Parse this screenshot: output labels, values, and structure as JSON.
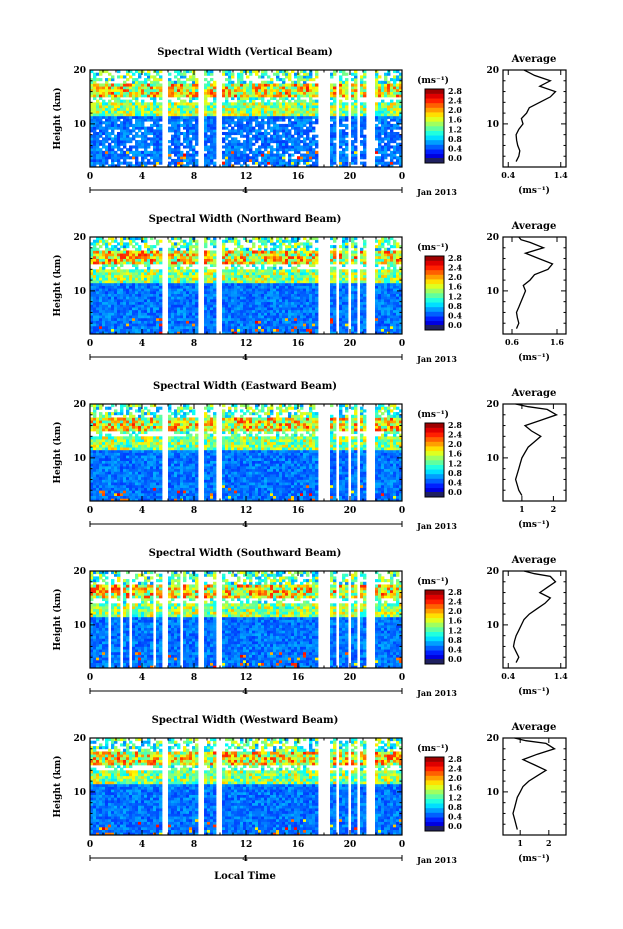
{
  "date_label": "Jan 2013",
  "xlabel_main": "Local Time",
  "ylabel": "Height (km)",
  "day_label": "4",
  "colorbar_unit": "(ms⁻¹)",
  "colorbar_ticks": [
    "0.0",
    "0.4",
    "0.8",
    "1.2",
    "1.6",
    "2.0",
    "2.4",
    "2.8"
  ],
  "avg_title": "Average",
  "avg_xlabel": "(ms⁻¹)",
  "chart_data": [
    {
      "type": "heatmap",
      "title": "Spectral Width (Vertical Beam)",
      "xticks": [
        "0",
        "4",
        "8",
        "12",
        "16",
        "20",
        "0"
      ],
      "yticks": [
        "10",
        "20"
      ],
      "xlim": [
        0,
        24
      ],
      "ylim": [
        2,
        20
      ],
      "clim": [
        0,
        3.0
      ]
    },
    {
      "type": "line",
      "title": "Average",
      "xticks": [
        "0.4",
        "1.4"
      ],
      "xlim": [
        0.3,
        1.5
      ],
      "ylim": [
        2,
        20
      ],
      "x": [
        0.55,
        0.6,
        0.62,
        0.58,
        0.56,
        0.55,
        0.6,
        0.68,
        0.65,
        0.75,
        0.8,
        1.0,
        1.2,
        1.3,
        1.0,
        1.2,
        0.9,
        0.8,
        0.7
      ],
      "y": [
        3,
        4,
        5,
        6,
        7,
        8,
        9,
        10,
        11,
        12,
        13,
        14,
        15,
        16,
        17,
        18,
        19,
        19.5,
        20
      ]
    },
    {
      "type": "heatmap",
      "title": "Spectral Width (Northward Beam)",
      "xticks": [
        "0",
        "4",
        "8",
        "12",
        "16",
        "20",
        "0"
      ],
      "yticks": [
        "10",
        "20"
      ],
      "xlim": [
        0,
        24
      ],
      "ylim": [
        2,
        20
      ],
      "clim": [
        0,
        3.0
      ]
    },
    {
      "type": "line",
      "title": "Average",
      "xticks": [
        "0.6",
        "1.6"
      ],
      "xlim": [
        0.4,
        1.8
      ],
      "ylim": [
        2,
        20
      ],
      "x": [
        0.7,
        0.75,
        0.72,
        0.7,
        0.75,
        0.8,
        0.85,
        0.9,
        0.85,
        1.0,
        1.1,
        1.4,
        1.5,
        1.2,
        0.9,
        1.3,
        1.0,
        0.8,
        0.75
      ],
      "y": [
        3,
        4,
        5,
        6,
        7,
        8,
        9,
        10,
        11,
        12,
        13,
        14,
        15,
        16,
        17,
        18,
        19,
        19.5,
        20
      ]
    },
    {
      "type": "heatmap",
      "title": "Spectral Width (Eastward Beam)",
      "xticks": [
        "0",
        "4",
        "8",
        "12",
        "16",
        "20",
        "0"
      ],
      "yticks": [
        "10",
        "20"
      ],
      "xlim": [
        0,
        24
      ],
      "ylim": [
        2,
        20
      ],
      "clim": [
        0,
        3.0
      ]
    },
    {
      "type": "line",
      "title": "Average",
      "xticks": [
        "1",
        "2"
      ],
      "xlim": [
        0.4,
        2.4
      ],
      "ylim": [
        2,
        20
      ],
      "x": [
        1.0,
        0.9,
        0.85,
        0.8,
        0.85,
        0.9,
        0.95,
        1.0,
        1.1,
        1.2,
        1.4,
        1.6,
        1.3,
        1.1,
        1.6,
        2.1,
        1.8,
        1.2,
        0.8
      ],
      "y": [
        3,
        4,
        5,
        6,
        7,
        8,
        9,
        10,
        11,
        12,
        13,
        14,
        15,
        16,
        17,
        18,
        19,
        19.5,
        20
      ]
    },
    {
      "type": "heatmap",
      "title": "Spectral Width (Southward Beam)",
      "xticks": [
        "0",
        "4",
        "8",
        "12",
        "16",
        "20",
        "0"
      ],
      "yticks": [
        "10",
        "20"
      ],
      "xlim": [
        0,
        24
      ],
      "ylim": [
        2,
        20
      ],
      "clim": [
        0,
        3.0
      ]
    },
    {
      "type": "line",
      "title": "Average",
      "xticks": [
        "0.4",
        "1.4"
      ],
      "xlim": [
        0.3,
        1.5
      ],
      "ylim": [
        2,
        20
      ],
      "x": [
        0.55,
        0.6,
        0.55,
        0.5,
        0.52,
        0.55,
        0.6,
        0.65,
        0.7,
        0.8,
        0.95,
        1.1,
        1.2,
        1.0,
        1.15,
        1.3,
        1.2,
        0.9,
        0.7
      ],
      "y": [
        3,
        4,
        5,
        6,
        7,
        8,
        9,
        10,
        11,
        12,
        13,
        14,
        15,
        16,
        17,
        18,
        19,
        19.5,
        20
      ]
    },
    {
      "type": "heatmap",
      "title": "Spectral Width (Westward Beam)",
      "xticks": [
        "0",
        "4",
        "8",
        "12",
        "16",
        "20",
        "0"
      ],
      "yticks": [
        "10",
        "20"
      ],
      "xlim": [
        0,
        24
      ],
      "ylim": [
        2,
        20
      ],
      "clim": [
        0,
        3.0
      ]
    },
    {
      "type": "line",
      "title": "Average",
      "xticks": [
        "1",
        "2"
      ],
      "xlim": [
        0.4,
        2.6
      ],
      "ylim": [
        2,
        20
      ],
      "x": [
        0.9,
        0.85,
        0.8,
        0.75,
        0.8,
        0.85,
        0.9,
        1.0,
        1.1,
        1.3,
        1.6,
        1.9,
        1.5,
        1.1,
        1.6,
        2.2,
        1.9,
        1.2,
        0.8
      ],
      "y": [
        3,
        4,
        5,
        6,
        7,
        8,
        9,
        10,
        11,
        12,
        13,
        14,
        15,
        16,
        17,
        18,
        19,
        19.5,
        20
      ]
    }
  ]
}
